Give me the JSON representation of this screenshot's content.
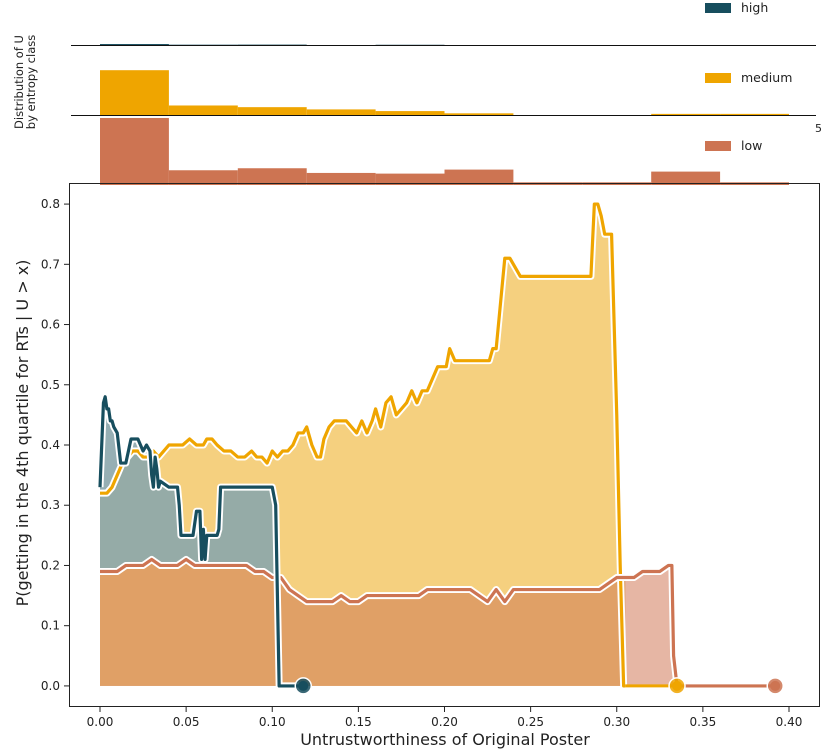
{
  "colors": {
    "high": "#174e5e",
    "medium": "#efa500",
    "low": "#cd7452",
    "axis": "#222222"
  },
  "chart_data": [
    {
      "type": "histogram",
      "ylabel": "Distribution of U by entropy class",
      "bin_edges": [
        0.0,
        0.04,
        0.08,
        0.12,
        0.16,
        0.2,
        0.24,
        0.28,
        0.32,
        0.36,
        0.4
      ],
      "stray_tick_label": "5",
      "series": [
        {
          "name": "high",
          "heights": [
            0.12,
            0.04,
            0.05,
            0,
            0.03,
            0,
            0,
            0,
            0,
            0
          ]
        },
        {
          "name": "medium",
          "heights": [
            0.8,
            0.17,
            0.14,
            0.1,
            0.07,
            0.03,
            0,
            0,
            0.02,
            0.02
          ]
        },
        {
          "name": "low",
          "heights": [
            1.0,
            0.22,
            0.25,
            0.18,
            0.17,
            0.23,
            0.04,
            0.04,
            0.2,
            0.04
          ]
        }
      ]
    },
    {
      "type": "area",
      "xlabel": "Untrustworthiness of Original Poster",
      "ylabel": "P(getting in the 4th quartile for RTs | U > x)",
      "xlim": [
        -0.018,
        0.418
      ],
      "ylim": [
        -0.035,
        0.835
      ],
      "xticks": [
        "0.00",
        "0.05",
        "0.10",
        "0.15",
        "0.20",
        "0.25",
        "0.30",
        "0.35",
        "0.40"
      ],
      "yticks": [
        "0.0",
        "0.1",
        "0.2",
        "0.3",
        "0.4",
        "0.5",
        "0.6",
        "0.7",
        "0.8"
      ],
      "series": [
        {
          "name": "medium",
          "x": [
            0.0,
            0.004,
            0.007,
            0.01,
            0.013,
            0.016,
            0.019,
            0.022,
            0.025,
            0.028,
            0.031,
            0.034,
            0.037,
            0.04,
            0.044,
            0.048,
            0.052,
            0.056,
            0.06,
            0.062,
            0.065,
            0.068,
            0.072,
            0.076,
            0.08,
            0.084,
            0.088,
            0.091,
            0.094,
            0.097,
            0.1,
            0.103,
            0.106,
            0.109,
            0.112,
            0.115,
            0.118,
            0.12,
            0.123,
            0.126,
            0.128,
            0.13,
            0.133,
            0.136,
            0.14,
            0.143,
            0.146,
            0.149,
            0.152,
            0.155,
            0.158,
            0.16,
            0.163,
            0.166,
            0.169,
            0.172,
            0.175,
            0.178,
            0.181,
            0.184,
            0.187,
            0.19,
            0.193,
            0.196,
            0.199,
            0.201,
            0.203,
            0.206,
            0.212,
            0.22,
            0.226,
            0.228,
            0.23,
            0.235,
            0.238,
            0.244,
            0.25,
            0.26,
            0.27,
            0.28,
            0.285,
            0.287,
            0.289,
            0.291,
            0.293,
            0.295,
            0.297,
            0.3,
            0.302,
            0.304,
            0.305
          ],
          "y": [
            0.32,
            0.32,
            0.33,
            0.35,
            0.37,
            0.38,
            0.39,
            0.39,
            0.38,
            0.38,
            0.39,
            0.38,
            0.39,
            0.4,
            0.4,
            0.4,
            0.41,
            0.4,
            0.4,
            0.41,
            0.41,
            0.4,
            0.39,
            0.39,
            0.38,
            0.38,
            0.39,
            0.38,
            0.38,
            0.37,
            0.39,
            0.38,
            0.39,
            0.39,
            0.4,
            0.42,
            0.42,
            0.43,
            0.4,
            0.38,
            0.38,
            0.41,
            0.43,
            0.44,
            0.44,
            0.44,
            0.43,
            0.42,
            0.44,
            0.42,
            0.44,
            0.46,
            0.43,
            0.47,
            0.48,
            0.45,
            0.46,
            0.47,
            0.49,
            0.47,
            0.49,
            0.49,
            0.51,
            0.53,
            0.53,
            0.53,
            0.56,
            0.54,
            0.54,
            0.54,
            0.54,
            0.56,
            0.56,
            0.71,
            0.71,
            0.68,
            0.68,
            0.68,
            0.68,
            0.68,
            0.68,
            0.8,
            0.8,
            0.78,
            0.75,
            0.75,
            0.75,
            0.45,
            0.2,
            0.0,
            0.0
          ]
        },
        {
          "name": "low",
          "x": [
            0.0,
            0.005,
            0.01,
            0.015,
            0.02,
            0.025,
            0.03,
            0.035,
            0.04,
            0.045,
            0.05,
            0.055,
            0.06,
            0.065,
            0.07,
            0.075,
            0.08,
            0.085,
            0.09,
            0.095,
            0.1,
            0.105,
            0.11,
            0.115,
            0.12,
            0.125,
            0.13,
            0.135,
            0.14,
            0.145,
            0.15,
            0.155,
            0.16,
            0.165,
            0.17,
            0.175,
            0.18,
            0.185,
            0.19,
            0.195,
            0.2,
            0.205,
            0.21,
            0.215,
            0.22,
            0.225,
            0.23,
            0.235,
            0.24,
            0.25,
            0.26,
            0.27,
            0.28,
            0.29,
            0.3,
            0.305,
            0.31,
            0.315,
            0.32,
            0.325,
            0.33,
            0.332,
            0.333,
            0.335,
            0.34,
            0.35,
            0.36,
            0.37,
            0.38,
            0.39,
            0.392
          ],
          "y": [
            0.19,
            0.19,
            0.19,
            0.2,
            0.2,
            0.2,
            0.21,
            0.2,
            0.2,
            0.2,
            0.21,
            0.2,
            0.2,
            0.2,
            0.2,
            0.2,
            0.2,
            0.2,
            0.19,
            0.19,
            0.18,
            0.18,
            0.16,
            0.15,
            0.14,
            0.14,
            0.14,
            0.14,
            0.15,
            0.14,
            0.14,
            0.15,
            0.15,
            0.15,
            0.15,
            0.15,
            0.15,
            0.15,
            0.16,
            0.16,
            0.16,
            0.16,
            0.16,
            0.16,
            0.15,
            0.14,
            0.16,
            0.14,
            0.16,
            0.16,
            0.16,
            0.16,
            0.16,
            0.16,
            0.18,
            0.18,
            0.18,
            0.19,
            0.19,
            0.19,
            0.2,
            0.2,
            0.05,
            0.0,
            0.0,
            0.0,
            0.0,
            0.0,
            0.0,
            0.0,
            0.0
          ]
        },
        {
          "name": "high",
          "x": [
            0.0,
            0.002,
            0.003,
            0.004,
            0.005,
            0.006,
            0.007,
            0.008,
            0.01,
            0.012,
            0.013,
            0.015,
            0.018,
            0.02,
            0.022,
            0.025,
            0.027,
            0.029,
            0.03,
            0.031,
            0.032,
            0.033,
            0.034,
            0.035,
            0.04,
            0.045,
            0.046,
            0.047,
            0.048,
            0.05,
            0.054,
            0.056,
            0.058,
            0.059,
            0.06,
            0.061,
            0.062,
            0.063,
            0.064,
            0.066,
            0.068,
            0.069,
            0.07,
            0.08,
            0.09,
            0.1,
            0.102,
            0.103,
            0.104,
            0.11,
            0.118
          ],
          "y": [
            0.33,
            0.47,
            0.48,
            0.46,
            0.46,
            0.44,
            0.44,
            0.43,
            0.42,
            0.37,
            0.37,
            0.37,
            0.41,
            0.41,
            0.41,
            0.39,
            0.4,
            0.39,
            0.35,
            0.33,
            0.38,
            0.36,
            0.33,
            0.34,
            0.33,
            0.33,
            0.3,
            0.25,
            0.25,
            0.25,
            0.25,
            0.29,
            0.29,
            0.21,
            0.26,
            0.21,
            0.25,
            0.25,
            0.25,
            0.25,
            0.25,
            0.26,
            0.33,
            0.33,
            0.33,
            0.33,
            0.3,
            0.15,
            0.0,
            0.0,
            0.0
          ]
        }
      ]
    }
  ]
}
